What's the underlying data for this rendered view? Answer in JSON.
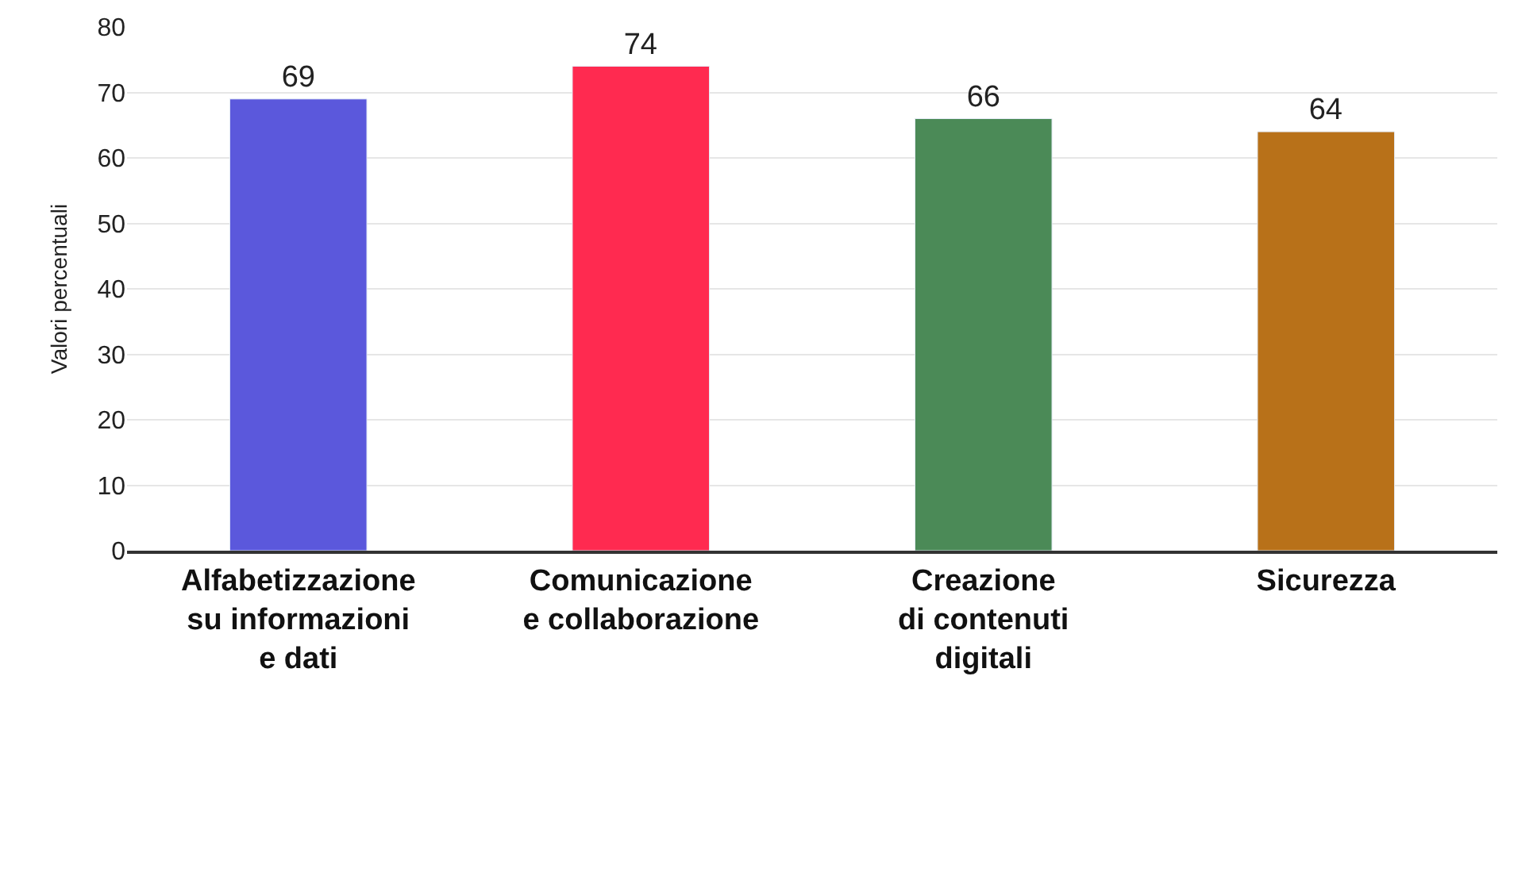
{
  "chart_data": {
    "type": "bar",
    "ylabel": "Valori percentuali",
    "categories": [
      "Alfabetizzazione\nsu informazioni\ne dati",
      "Comunicazione\ne collaborazione",
      "Creazione\ndi contenuti\ndigitali",
      "Sicurezza"
    ],
    "values": [
      69,
      74,
      66,
      64
    ],
    "colors": [
      "#5b58dc",
      "#ff2a50",
      "#4b8a57",
      "#b87119"
    ],
    "ylim": [
      0,
      80
    ],
    "yticks": [
      0,
      10,
      20,
      30,
      40,
      50,
      60,
      70,
      80
    ],
    "grid": "y",
    "data_labels": true
  }
}
